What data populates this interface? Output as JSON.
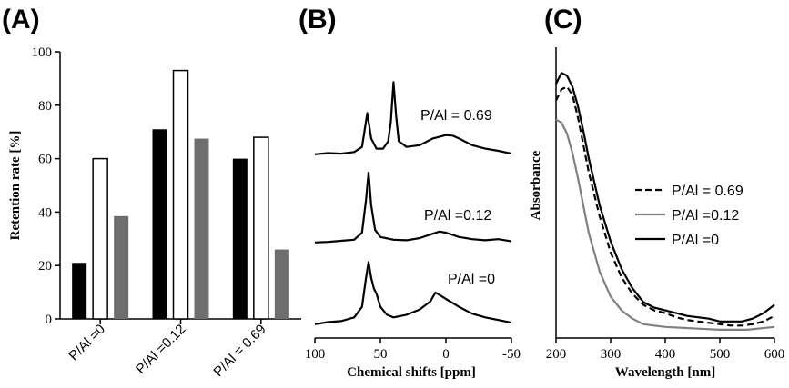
{
  "chart_data": [
    {
      "panel": "(A)",
      "type": "bar",
      "categories": [
        "P/Al =0",
        "P/Al =0.12",
        "P/Al = 0.69"
      ],
      "series": [
        {
          "values": [
            21,
            71,
            60
          ],
          "color": "#000000",
          "fill": "solid"
        },
        {
          "values": [
            60,
            93,
            68
          ],
          "color": "#ffffff",
          "fill": "outline"
        },
        {
          "values": [
            38.5,
            67.5,
            26
          ],
          "color": "#6e6e6e",
          "fill": "solid"
        }
      ],
      "ylabel": "Retention rate [%]",
      "ylim": [
        0,
        100
      ],
      "yticks": [
        0,
        20,
        40,
        60,
        80,
        100
      ],
      "grid": false
    },
    {
      "panel": "(B)",
      "type": "line",
      "xlabel": "Chemical shifts [ppm]",
      "xlim": [
        100,
        -50
      ],
      "xticks": [
        100,
        50,
        0,
        -50
      ],
      "x_reversed": true,
      "y_axis_shown": false,
      "stacked_offset": true,
      "series": [
        {
          "name": "P/Al = 0.69",
          "points": [
            [
              100,
              0.02
            ],
            [
              90,
              0.04
            ],
            [
              80,
              0.03
            ],
            [
              70,
              0.06
            ],
            [
              64,
              0.15
            ],
            [
              60,
              0.75
            ],
            [
              57,
              0.3
            ],
            [
              53,
              0.12
            ],
            [
              48,
              0.12
            ],
            [
              44,
              0.25
            ],
            [
              42,
              0.6
            ],
            [
              40,
              1.3
            ],
            [
              38,
              0.7
            ],
            [
              36,
              0.25
            ],
            [
              30,
              0.15
            ],
            [
              20,
              0.18
            ],
            [
              10,
              0.3
            ],
            [
              0,
              0.36
            ],
            [
              -5,
              0.35
            ],
            [
              -10,
              0.3
            ],
            [
              -20,
              0.18
            ],
            [
              -30,
              0.12
            ],
            [
              -40,
              0.08
            ],
            [
              -50,
              0.03
            ]
          ]
        },
        {
          "name": "P/Al =0.12",
          "points": [
            [
              100,
              0.02
            ],
            [
              90,
              0.03
            ],
            [
              80,
              0.05
            ],
            [
              70,
              0.07
            ],
            [
              64,
              0.2
            ],
            [
              61,
              0.8
            ],
            [
              59,
              1.3
            ],
            [
              57,
              0.7
            ],
            [
              54,
              0.25
            ],
            [
              50,
              0.12
            ],
            [
              40,
              0.07
            ],
            [
              30,
              0.06
            ],
            [
              20,
              0.1
            ],
            [
              10,
              0.18
            ],
            [
              5,
              0.22
            ],
            [
              0,
              0.2
            ],
            [
              -10,
              0.12
            ],
            [
              -20,
              0.08
            ],
            [
              -30,
              0.06
            ],
            [
              -40,
              0.08
            ],
            [
              -50,
              0.04
            ]
          ]
        },
        {
          "name": "P/Al =0",
          "points": [
            [
              100,
              0.02
            ],
            [
              90,
              0.06
            ],
            [
              80,
              0.08
            ],
            [
              70,
              0.15
            ],
            [
              64,
              0.35
            ],
            [
              61,
              0.9
            ],
            [
              59,
              1.2
            ],
            [
              57,
              0.9
            ],
            [
              55,
              0.7
            ],
            [
              53,
              0.6
            ],
            [
              50,
              0.35
            ],
            [
              45,
              0.2
            ],
            [
              40,
              0.15
            ],
            [
              30,
              0.2
            ],
            [
              20,
              0.3
            ],
            [
              12,
              0.45
            ],
            [
              8,
              0.62
            ],
            [
              5,
              0.58
            ],
            [
              0,
              0.5
            ],
            [
              -10,
              0.35
            ],
            [
              -20,
              0.22
            ],
            [
              -30,
              0.15
            ],
            [
              -40,
              0.1
            ],
            [
              -50,
              0.05
            ]
          ]
        }
      ]
    },
    {
      "panel": "(C)",
      "type": "line",
      "xlabel": "Wavelength [nm]",
      "ylabel": "Absorbance",
      "xlim": [
        200,
        600
      ],
      "xticks": [
        200,
        300,
        400,
        500,
        600
      ],
      "ylim": [
        0,
        1
      ],
      "y_ticks_shown": false,
      "legend_position": "right",
      "series": [
        {
          "name": "P/Al = 0.69",
          "style": "dashed",
          "color": "#000000",
          "points": [
            [
              200,
              0.86
            ],
            [
              210,
              0.9
            ],
            [
              220,
              0.91
            ],
            [
              230,
              0.88
            ],
            [
              240,
              0.8
            ],
            [
              250,
              0.7
            ],
            [
              260,
              0.6
            ],
            [
              280,
              0.44
            ],
            [
              300,
              0.31
            ],
            [
              320,
              0.22
            ],
            [
              340,
              0.16
            ],
            [
              360,
              0.12
            ],
            [
              380,
              0.1
            ],
            [
              400,
              0.09
            ],
            [
              420,
              0.075
            ],
            [
              440,
              0.065
            ],
            [
              460,
              0.06
            ],
            [
              480,
              0.055
            ],
            [
              500,
              0.05
            ],
            [
              520,
              0.045
            ],
            [
              540,
              0.045
            ],
            [
              560,
              0.05
            ],
            [
              580,
              0.06
            ],
            [
              600,
              0.08
            ]
          ]
        },
        {
          "name": "P/Al =0.12",
          "style": "solid",
          "color": "#808080",
          "points": [
            [
              200,
              0.79
            ],
            [
              210,
              0.78
            ],
            [
              220,
              0.74
            ],
            [
              230,
              0.67
            ],
            [
              240,
              0.58
            ],
            [
              250,
              0.48
            ],
            [
              260,
              0.38
            ],
            [
              280,
              0.24
            ],
            [
              300,
              0.15
            ],
            [
              320,
              0.1
            ],
            [
              340,
              0.07
            ],
            [
              360,
              0.05
            ],
            [
              380,
              0.045
            ],
            [
              400,
              0.04
            ],
            [
              450,
              0.035
            ],
            [
              500,
              0.03
            ],
            [
              550,
              0.03
            ],
            [
              600,
              0.04
            ]
          ]
        },
        {
          "name": "P/Al =0",
          "style": "solid",
          "color": "#000000",
          "points": [
            [
              200,
              0.92
            ],
            [
              210,
              0.96
            ],
            [
              220,
              0.95
            ],
            [
              230,
              0.91
            ],
            [
              240,
              0.84
            ],
            [
              250,
              0.75
            ],
            [
              260,
              0.65
            ],
            [
              280,
              0.48
            ],
            [
              300,
              0.35
            ],
            [
              320,
              0.25
            ],
            [
              340,
              0.18
            ],
            [
              360,
              0.13
            ],
            [
              380,
              0.11
            ],
            [
              400,
              0.1
            ],
            [
              420,
              0.09
            ],
            [
              440,
              0.08
            ],
            [
              460,
              0.075
            ],
            [
              480,
              0.07
            ],
            [
              500,
              0.06
            ],
            [
              520,
              0.06
            ],
            [
              540,
              0.06
            ],
            [
              560,
              0.07
            ],
            [
              580,
              0.09
            ],
            [
              600,
              0.12
            ]
          ]
        }
      ]
    }
  ]
}
